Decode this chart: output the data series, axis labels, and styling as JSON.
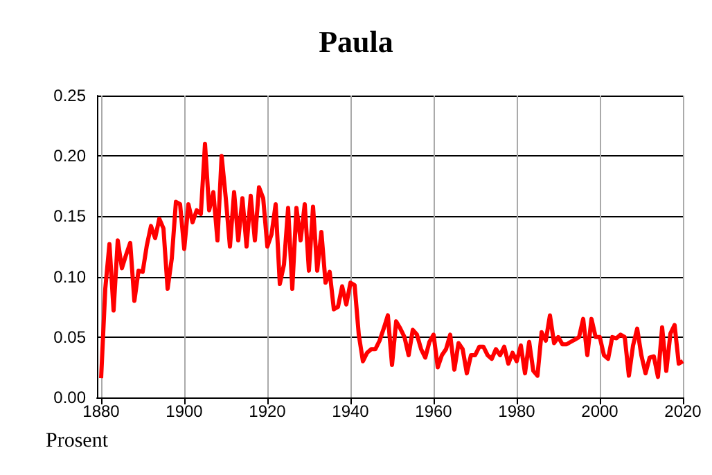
{
  "chart_data": {
    "type": "line",
    "title": "Paula",
    "ylabel": "Prosent",
    "x": [
      1880,
      1881,
      1882,
      1883,
      1884,
      1885,
      1886,
      1887,
      1888,
      1889,
      1890,
      1891,
      1892,
      1893,
      1894,
      1895,
      1896,
      1897,
      1898,
      1899,
      1900,
      1901,
      1902,
      1903,
      1904,
      1905,
      1906,
      1907,
      1908,
      1909,
      1910,
      1911,
      1912,
      1913,
      1914,
      1915,
      1916,
      1917,
      1918,
      1919,
      1920,
      1921,
      1922,
      1923,
      1924,
      1925,
      1926,
      1927,
      1928,
      1929,
      1930,
      1931,
      1932,
      1933,
      1934,
      1935,
      1936,
      1937,
      1938,
      1939,
      1940,
      1941,
      1942,
      1943,
      1944,
      1945,
      1946,
      1947,
      1948,
      1949,
      1950,
      1951,
      1952,
      1953,
      1954,
      1955,
      1956,
      1957,
      1958,
      1959,
      1960,
      1961,
      1962,
      1963,
      1964,
      1965,
      1966,
      1967,
      1968,
      1969,
      1970,
      1971,
      1972,
      1973,
      1974,
      1975,
      1976,
      1977,
      1978,
      1979,
      1980,
      1981,
      1982,
      1983,
      1984,
      1985,
      1986,
      1987,
      1988,
      1989,
      1990,
      1991,
      1992,
      1993,
      1994,
      1995,
      1996,
      1997,
      1998,
      1999,
      2000,
      2001,
      2002,
      2003,
      2004,
      2005,
      2006,
      2007,
      2008,
      2009,
      2010,
      2011,
      2012,
      2013,
      2014,
      2015,
      2016,
      2017,
      2018,
      2019,
      2020
    ],
    "series": [
      {
        "color": "#ff0000",
        "values": [
          0.016,
          0.09,
          0.127,
          0.072,
          0.13,
          0.107,
          0.118,
          0.128,
          0.08,
          0.105,
          0.104,
          0.126,
          0.142,
          0.132,
          0.148,
          0.14,
          0.09,
          0.115,
          0.162,
          0.16,
          0.123,
          0.16,
          0.145,
          0.155,
          0.152,
          0.21,
          0.155,
          0.17,
          0.13,
          0.2,
          0.165,
          0.125,
          0.17,
          0.13,
          0.165,
          0.125,
          0.167,
          0.13,
          0.174,
          0.165,
          0.125,
          0.135,
          0.16,
          0.094,
          0.11,
          0.157,
          0.09,
          0.157,
          0.13,
          0.16,
          0.105,
          0.158,
          0.105,
          0.137,
          0.095,
          0.104,
          0.073,
          0.075,
          0.092,
          0.077,
          0.095,
          0.093,
          0.052,
          0.03,
          0.037,
          0.04,
          0.04,
          0.047,
          0.057,
          0.068,
          0.027,
          0.063,
          0.057,
          0.05,
          0.035,
          0.056,
          0.052,
          0.04,
          0.033,
          0.046,
          0.052,
          0.025,
          0.035,
          0.04,
          0.052,
          0.023,
          0.045,
          0.04,
          0.02,
          0.035,
          0.035,
          0.042,
          0.042,
          0.035,
          0.032,
          0.04,
          0.035,
          0.042,
          0.028,
          0.037,
          0.03,
          0.043,
          0.02,
          0.046,
          0.022,
          0.018,
          0.054,
          0.047,
          0.068,
          0.045,
          0.05,
          0.044,
          0.044,
          0.046,
          0.048,
          0.05,
          0.065,
          0.035,
          0.065,
          0.05,
          0.05,
          0.035,
          0.032,
          0.05,
          0.049,
          0.052,
          0.05,
          0.018,
          0.043,
          0.057,
          0.035,
          0.02,
          0.033,
          0.034,
          0.017,
          0.058,
          0.022,
          0.053,
          0.06,
          0.028,
          0.03
        ]
      }
    ],
    "xlim": [
      1879,
      2020
    ],
    "xticks": [
      1880,
      1900,
      1920,
      1940,
      1960,
      1980,
      2000,
      2020
    ],
    "ylim": [
      0,
      0.25
    ],
    "yticks": [
      {
        "value": 0,
        "label": "0.00"
      },
      0.05,
      {
        "value": 0.1,
        "label": "0.10"
      },
      0.15,
      {
        "value": 0.2,
        "label": "0.20"
      },
      0.25
    ],
    "grid": true,
    "marker": "none",
    "line_style": "solid"
  }
}
